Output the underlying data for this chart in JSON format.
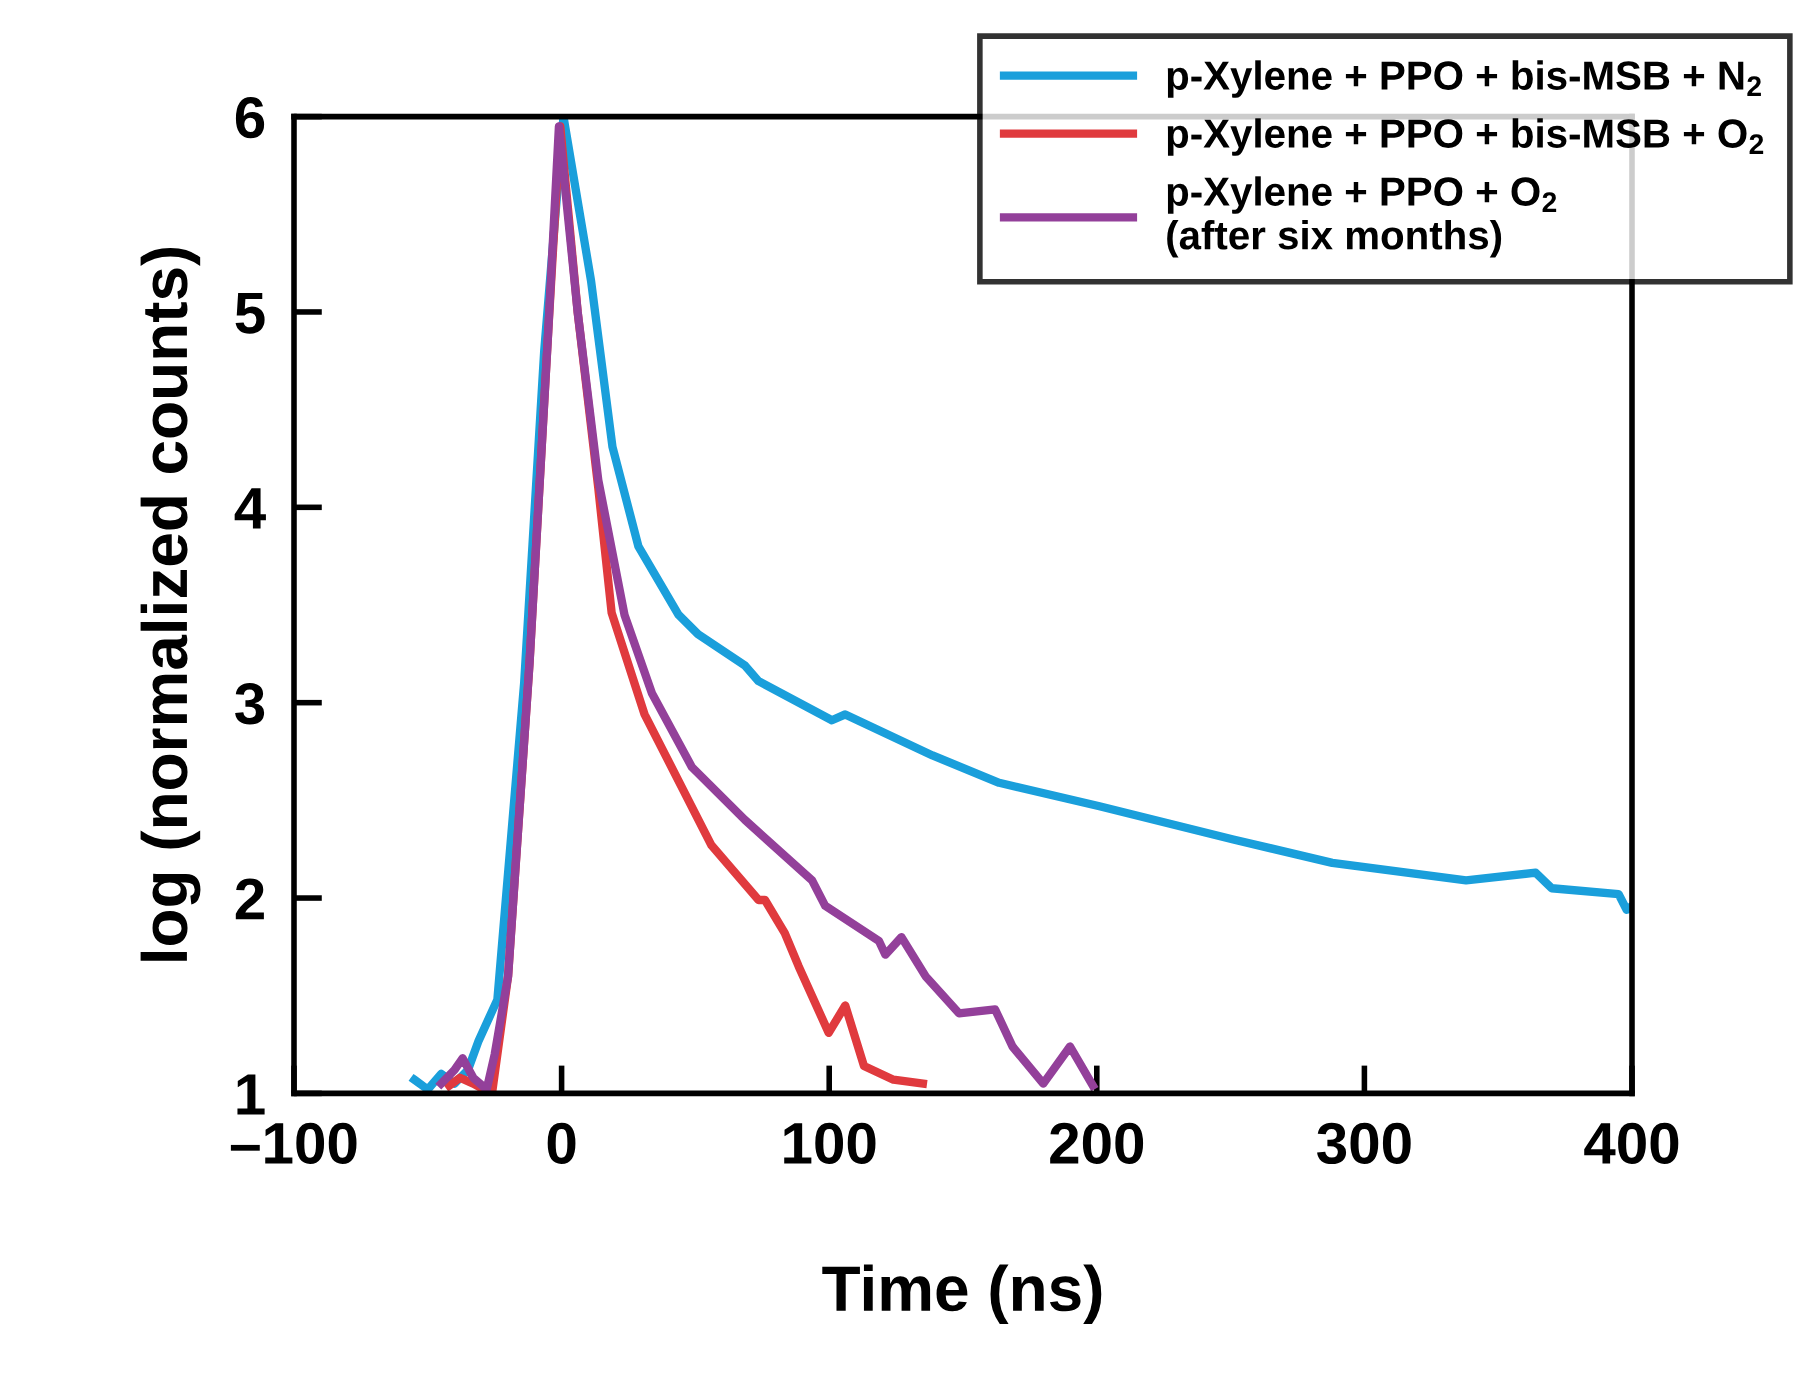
{
  "chart_data": {
    "type": "line",
    "xlabel": "Time (ns)",
    "ylabel": "log (normalized counts)",
    "xlim": [
      -100,
      400
    ],
    "ylim": [
      1,
      6
    ],
    "xticks": [
      {
        "value": -100,
        "label": "–100"
      },
      0,
      100,
      200,
      300,
      400
    ],
    "yticks": [
      1,
      2,
      3,
      4,
      5,
      6
    ],
    "grid": false,
    "legend": "top right",
    "marker": "none",
    "line_style": "solid",
    "series": [
      {
        "name": "p-Xylene + PPO + bis-MSB + N$_{2}$",
        "color": "#1a9fdb",
        "x": [
          -55,
          -50,
          -45,
          -40,
          -35,
          -31,
          -24,
          -14,
          -6.5,
          0.7,
          11,
          19,
          28.7,
          43.7,
          51,
          68.5,
          73.6,
          101,
          106,
          138.6,
          163.5,
          201,
          251,
          288,
          338,
          364,
          370,
          395,
          398,
          400
        ],
        "values": [
          1.07,
          1.02,
          1.1,
          1.05,
          1.12,
          1.27,
          1.48,
          3.1,
          4.8,
          6.0,
          5.16,
          4.31,
          3.8,
          3.45,
          3.35,
          3.19,
          3.11,
          2.91,
          2.94,
          2.73,
          2.59,
          2.47,
          2.3,
          2.18,
          2.09,
          2.13,
          2.05,
          2.02,
          1.94,
          1.96
        ]
      },
      {
        "name": "p-Xylene + PPO + bis-MSB + O$_{2}$",
        "color": "#e03a3e",
        "x": [
          -42,
          -38,
          -33,
          -29,
          -26,
          -20,
          -12,
          -5,
          -0.5,
          6,
          13.7,
          18.7,
          31,
          43.7,
          56,
          73.6,
          76,
          83.4,
          88.6,
          99.8,
          106,
          113,
          124,
          135
        ],
        "values": [
          1.04,
          1.08,
          1.05,
          1.02,
          1.0,
          1.6,
          3.2,
          4.9,
          5.95,
          5.0,
          4.1,
          3.46,
          2.94,
          2.6,
          2.27,
          1.99,
          1.99,
          1.82,
          1.65,
          1.31,
          1.45,
          1.14,
          1.07,
          1.05
        ]
      },
      {
        "name": "p-Xylene + PPO + O$_{2}$\n(after six months)",
        "color": "#93409a",
        "x": [
          -45,
          -40,
          -37,
          -33,
          -28,
          -25,
          -20,
          -12,
          -5,
          -1,
          6,
          13.7,
          23.5,
          33.7,
          48.7,
          68.5,
          93.6,
          98.5,
          118.6,
          121,
          127,
          136,
          148.5,
          162,
          168.5,
          180,
          190,
          198.5
        ],
        "values": [
          1.05,
          1.12,
          1.18,
          1.08,
          1.02,
          1.2,
          1.6,
          3.2,
          4.9,
          5.95,
          5.0,
          4.14,
          3.45,
          3.05,
          2.67,
          2.4,
          2.09,
          1.96,
          1.78,
          1.71,
          1.8,
          1.6,
          1.41,
          1.43,
          1.24,
          1.05,
          1.24,
          1.04
        ]
      }
    ]
  }
}
